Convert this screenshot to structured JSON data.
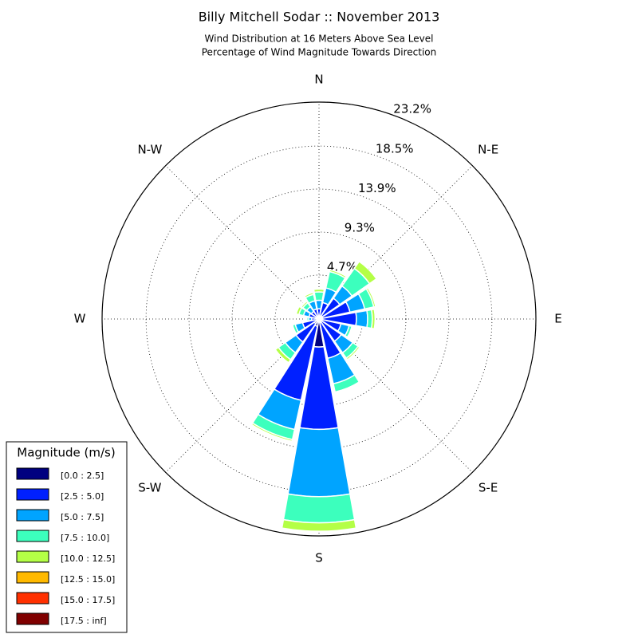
{
  "chart_data": {
    "type": "windrose",
    "title": "Billy Mitchell Sodar :: November 2013",
    "subtitle": [
      "Wind Distribution at 16 Meters Above Sea Level",
      "Percentage of Wind Magnitude Towards Direction"
    ],
    "categories": [
      "N",
      null,
      "N-E",
      null,
      "E",
      null,
      "S-E",
      null,
      "S",
      null,
      "S-W",
      null,
      "W",
      null,
      "N-W",
      null
    ],
    "ylim": [
      0,
      23.2
    ],
    "yticks": [
      {
        "value": 4.7,
        "label": "4.7%"
      },
      {
        "value": 9.3,
        "label": "9.3%"
      },
      {
        "value": 13.9,
        "label": "13.9%"
      },
      {
        "value": 18.5,
        "label": "18.5%"
      },
      {
        "value": 23.2,
        "label": "23.2%"
      }
    ],
    "grid": true,
    "legend_title": "Magnitude (m/s)",
    "legend_position": "lower-left",
    "series": [
      {
        "name": "[0.0 : 2.5]",
        "color": "#000080",
        "values": [
          0.3,
          0.3,
          0.4,
          0.4,
          0.4,
          0.3,
          0.3,
          0.4,
          3.0,
          0.8,
          0.6,
          0.3,
          0.2,
          0.3,
          0.3,
          0.3
        ]
      },
      {
        "name": "[2.5 : 5.0]",
        "color": "#0020ff",
        "values": [
          0.8,
          1.5,
          2.3,
          3.0,
          3.6,
          2.1,
          2.6,
          3.9,
          8.8,
          8.1,
          2.4,
          1.5,
          0.6,
          0.8,
          0.7,
          0.8
        ]
      },
      {
        "name": "[5.0 : 7.5]",
        "color": "#00a4ff",
        "values": [
          0.9,
          1.6,
          1.6,
          1.6,
          1.2,
          0.9,
          1.5,
          2.8,
          7.2,
          3.2,
          1.4,
          0.8,
          0.3,
          0.6,
          0.6,
          0.9
        ]
      },
      {
        "name": "[7.5 : 10.0]",
        "color": "#3cffbd",
        "values": [
          0.9,
          1.8,
          2.3,
          1.0,
          0.5,
          0.3,
          0.7,
          0.9,
          2.8,
          1.1,
          0.9,
          0.3,
          0.2,
          0.5,
          0.5,
          0.7
        ]
      },
      {
        "name": "[10.0 : 12.5]",
        "color": "#b4ff46",
        "values": [
          0.3,
          0.2,
          0.9,
          0.2,
          0.3,
          0,
          0.2,
          0.1,
          0.9,
          0.2,
          0.4,
          0.1,
          0.1,
          0.3,
          0.2,
          0.2
        ]
      },
      {
        "name": "[12.5 : 15.0]",
        "color": "#ffb900",
        "values": [
          0,
          0,
          0,
          0,
          0,
          0,
          0,
          0,
          0,
          0,
          0,
          0,
          0,
          0.1,
          0.1,
          0
        ]
      },
      {
        "name": "[15.0 : 17.5]",
        "color": "#ff3000",
        "values": [
          0,
          0,
          0,
          0,
          0,
          0,
          0,
          0,
          0,
          0,
          0,
          0,
          0,
          0,
          0,
          0
        ]
      },
      {
        "name": "[17.5 : inf]",
        "color": "#800000",
        "values": [
          0,
          0,
          0,
          0,
          0,
          0,
          0,
          0,
          0,
          0,
          0,
          0,
          0,
          0,
          0,
          0
        ]
      }
    ]
  }
}
